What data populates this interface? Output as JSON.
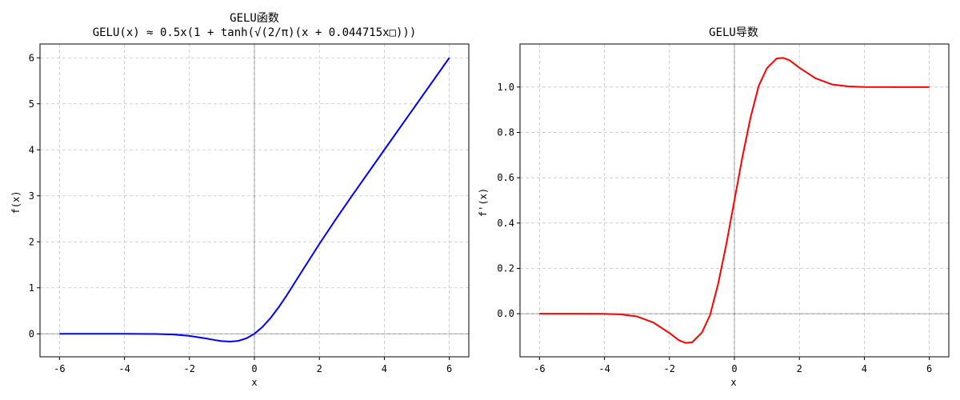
{
  "chart_data": [
    {
      "type": "line",
      "title": "GELU函数",
      "subtitle": "GELU(x) ≈ 0.5x(1 + tanh(√(2/π)(x + 0.044715x□)))",
      "xlabel": "x",
      "ylabel": "f(x)",
      "xlim": [
        -6.6,
        6.6
      ],
      "ylim": [
        -0.5,
        6.3
      ],
      "xticks": [
        -6,
        -4,
        -2,
        0,
        2,
        4,
        6
      ],
      "yticks": [
        0,
        1,
        2,
        3,
        4,
        5,
        6
      ],
      "ytick_labels": [
        "0",
        "1",
        "2",
        "3",
        "4",
        "5",
        "6"
      ],
      "grid": true,
      "reference_lines": {
        "x": 0,
        "y": 0
      },
      "series": [
        {
          "color": "#0000ff",
          "x": [
            -6,
            -5,
            -4,
            -3,
            -2.5,
            -2,
            -1.5,
            -1.2,
            -1,
            -0.75,
            -0.5,
            -0.25,
            0,
            0.25,
            0.5,
            0.75,
            1,
            1.5,
            2,
            2.5,
            3,
            4,
            5,
            6
          ],
          "y": [
            0,
            0,
            -0.0001,
            -0.0036,
            -0.0154,
            -0.0454,
            -0.1003,
            -0.1382,
            -0.1588,
            -0.17,
            -0.1543,
            -0.0996,
            0,
            0.1504,
            0.3457,
            0.58,
            0.8412,
            1.3996,
            1.9546,
            2.4845,
            2.9964,
            3.9999,
            5.0,
            6.0
          ]
        }
      ]
    },
    {
      "type": "line",
      "title": "GELU导数",
      "xlabel": "x",
      "ylabel": "f'(x)",
      "xlim": [
        -6.6,
        6.6
      ],
      "ylim": [
        -0.19,
        1.19
      ],
      "xticks": [
        -6,
        -4,
        -2,
        0,
        2,
        4,
        6
      ],
      "yticks": [
        0,
        0.2,
        0.4,
        0.6,
        0.8,
        1.0
      ],
      "ytick_labels": [
        "0.0",
        "0.2",
        "0.4",
        "0.6",
        "0.8",
        "1.0"
      ],
      "grid": true,
      "reference_lines": {
        "x": 0,
        "y": 0
      },
      "series": [
        {
          "color": "#ff0000",
          "x": [
            -6,
            -5,
            -4,
            -3.5,
            -3,
            -2.5,
            -2,
            -1.7,
            -1.5,
            -1.3,
            -1.0,
            -0.75,
            -0.5,
            -0.25,
            0,
            0.25,
            0.5,
            0.75,
            1.0,
            1.3,
            1.5,
            1.7,
            2,
            2.5,
            3,
            3.5,
            4,
            5,
            6
          ],
          "y": [
            0,
            0,
            -0.0005,
            -0.003,
            -0.0119,
            -0.0383,
            -0.0852,
            -0.1178,
            -0.1288,
            -0.1261,
            -0.083,
            -0.006,
            0.1325,
            0.306,
            0.5,
            0.694,
            0.8675,
            1.006,
            1.083,
            1.1261,
            1.1288,
            1.1178,
            1.0852,
            1.0383,
            1.0119,
            1.003,
            1.0005,
            1.0,
            1.0
          ]
        }
      ]
    }
  ]
}
